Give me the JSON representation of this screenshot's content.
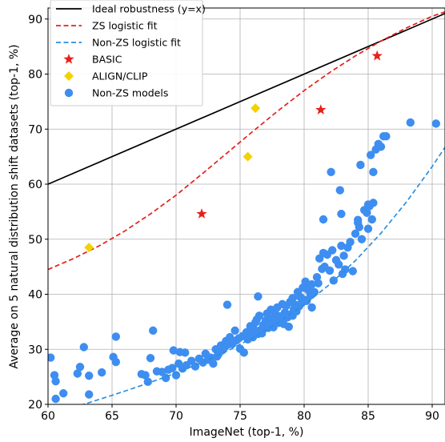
{
  "chart_data": {
    "type": "scatter",
    "title": "",
    "xlabel": "ImageNet (top-1, %)",
    "ylabel": "Average on 5 natural distribution shift datasets (top-1, %)",
    "xlim": [
      60,
      91
    ],
    "ylim": [
      20,
      92
    ],
    "x_ticks": [
      60,
      65,
      70,
      75,
      80,
      85,
      90
    ],
    "y_ticks": [
      20,
      30,
      40,
      50,
      60,
      70,
      80,
      90
    ],
    "grid": true,
    "legend_position": "top-left",
    "legend": [
      {
        "label": "Ideal robustness (y=x)",
        "kind": "solid-line",
        "color": "#000000"
      },
      {
        "label": "ZS logistic fit",
        "kind": "dashed-line",
        "color": "#e8201a"
      },
      {
        "label": "Non-ZS logistic fit",
        "kind": "dashed-line",
        "color": "#2b8fe0"
      },
      {
        "label": "BASIC",
        "kind": "star",
        "color": "#e8201a"
      },
      {
        "label": "ALIGN/CLIP",
        "kind": "diamond",
        "color": "#f5d100"
      },
      {
        "label": "Non-ZS models",
        "kind": "circle",
        "color": "#3d8ef0"
      }
    ],
    "series": [
      {
        "name": "Ideal robustness (y=x)",
        "kind": "line",
        "style": "solid",
        "color": "#000000",
        "x": [
          60,
          91
        ],
        "y": [
          60,
          91
        ]
      },
      {
        "name": "ZS logistic fit",
        "kind": "line",
        "style": "dashed",
        "color": "#e8201a",
        "x": [
          60,
          62,
          64,
          66,
          68,
          70,
          72,
          74,
          76,
          78,
          80,
          82,
          84,
          86,
          88,
          90,
          91
        ],
        "y": [
          44.5,
          46.5,
          48.8,
          51.5,
          54.6,
          58.0,
          61.8,
          65.7,
          69.6,
          73.4,
          77.0,
          80.3,
          83.3,
          86.0,
          88.4,
          90.5,
          91.3
        ]
      },
      {
        "name": "Non-ZS logistic fit",
        "kind": "line",
        "style": "dashed",
        "color": "#2b8fe0",
        "x": [
          62.5,
          64,
          66,
          68,
          70,
          72,
          74,
          76,
          78,
          80,
          82,
          84,
          86,
          88,
          90,
          91
        ],
        "y": [
          19.8,
          20.9,
          22.4,
          24.0,
          25.7,
          27.6,
          29.7,
          32.1,
          34.9,
          38.1,
          41.8,
          46.1,
          51.1,
          56.8,
          63.2,
          66.7
        ]
      },
      {
        "name": "BASIC",
        "kind": "star",
        "color": "#e8201a",
        "x": [
          72.0,
          81.3,
          85.7
        ],
        "y": [
          54.6,
          73.5,
          83.3
        ]
      },
      {
        "name": "ALIGN/CLIP",
        "kind": "diamond",
        "color": "#f5d100",
        "x": [
          63.2,
          75.6,
          76.2
        ],
        "y": [
          48.5,
          65.0,
          73.8
        ]
      },
      {
        "name": "Non-ZS models",
        "kind": "circle",
        "color": "#3d8ef0",
        "x": [
          60.2,
          60.5,
          60.6,
          60.6,
          61.2,
          62.3,
          62.5,
          62.8,
          63.2,
          63.2,
          64.2,
          65.1,
          65.3,
          65.3,
          67.3,
          67.6,
          67.8,
          68.0,
          68.2,
          68.5,
          68.9,
          69.2,
          69.4,
          69.7,
          69.8,
          70.0,
          70.2,
          70.3,
          70.5,
          70.7,
          70.8,
          71.2,
          71.5,
          71.8,
          72.1,
          72.3,
          72.5,
          72.7,
          72.9,
          73.1,
          73.2,
          73.3,
          73.5,
          73.6,
          73.8,
          73.9,
          74.1,
          74.2,
          74.4,
          74.6,
          74.7,
          74.9,
          75.0,
          75.2,
          75.3,
          75.5,
          75.6,
          75.8,
          75.9,
          76.0,
          76.1,
          76.2,
          76.3,
          76.4,
          76.5,
          76.6,
          76.7,
          76.8,
          76.9,
          77.0,
          77.1,
          77.2,
          77.3,
          77.4,
          77.5,
          77.6,
          77.7,
          77.8,
          77.9,
          78.0,
          78.1,
          78.2,
          78.3,
          78.4,
          78.5,
          78.6,
          78.7,
          78.8,
          78.9,
          79.0,
          79.1,
          79.2,
          79.3,
          79.4,
          79.5,
          79.6,
          79.7,
          79.8,
          79.9,
          80.0,
          80.1,
          80.2,
          80.3,
          80.4,
          80.5,
          80.6,
          80.8,
          81.0,
          81.1,
          81.2,
          81.4,
          81.5,
          81.6,
          81.8,
          82.0,
          82.2,
          82.3,
          82.5,
          82.7,
          82.9,
          83.0,
          83.1,
          83.2,
          83.4,
          83.6,
          83.8,
          84.0,
          84.2,
          84.3,
          84.5,
          84.7,
          84.9,
          85.0,
          85.1,
          85.2,
          85.4,
          85.6,
          85.8,
          86.0,
          86.2,
          86.4,
          88.3,
          90.3,
          76.4,
          82.1,
          82.9,
          84.2,
          84.4,
          85.0,
          85.3,
          85.4,
          74.0,
          77.3,
          79.1,
          80.6,
          81.5,
          82.8
        ],
        "y": [
          28.5,
          25.3,
          24.2,
          21.0,
          22.0,
          25.6,
          26.8,
          30.4,
          25.2,
          21.8,
          25.8,
          28.6,
          27.7,
          32.3,
          25.5,
          25.3,
          24.1,
          28.4,
          33.4,
          26.0,
          25.9,
          24.8,
          26.3,
          26.6,
          29.8,
          25.3,
          27.4,
          29.5,
          26.5,
          29.4,
          27.1,
          27.9,
          26.9,
          28.3,
          27.6,
          29.2,
          28.1,
          28.5,
          27.4,
          30.0,
          28.7,
          29.1,
          30.7,
          29.8,
          30.4,
          31.5,
          30.9,
          32.2,
          31.0,
          33.4,
          31.6,
          32.0,
          30.1,
          32.4,
          29.4,
          33.1,
          31.8,
          34.2,
          32.5,
          32.2,
          33.6,
          34.9,
          35.4,
          32.8,
          36.1,
          33.5,
          32.9,
          34.4,
          33.8,
          35.2,
          36.5,
          33.9,
          34.7,
          37.2,
          35.6,
          34.0,
          36.8,
          35.3,
          37.6,
          34.8,
          36.0,
          35.1,
          38.2,
          34.6,
          36.7,
          37.9,
          35.8,
          34.1,
          38.6,
          36.4,
          39.3,
          37.3,
          38.1,
          36.9,
          40.4,
          37.8,
          39.5,
          38.4,
          41.2,
          39.0,
          42.3,
          38.8,
          40.8,
          41.5,
          39.8,
          41.8,
          40.4,
          43.1,
          42.0,
          46.5,
          44.6,
          47.5,
          45.0,
          47.2,
          44.3,
          48.0,
          42.5,
          46.2,
          45.4,
          48.8,
          43.7,
          47.0,
          44.5,
          48.5,
          49.5,
          44.2,
          51.0,
          53.5,
          52.2,
          50.0,
          55.3,
          54.8,
          56.3,
          56.0,
          65.3,
          62.2,
          66.3,
          67.3,
          66.8,
          68.7,
          68.7,
          71.2,
          71.0,
          39.6,
          62.2,
          54.6,
          53.0,
          63.5,
          51.9,
          53.6,
          56.6,
          38.1,
          34.8,
          36.1,
          37.6,
          53.6,
          58.9
        ]
      }
    ]
  }
}
